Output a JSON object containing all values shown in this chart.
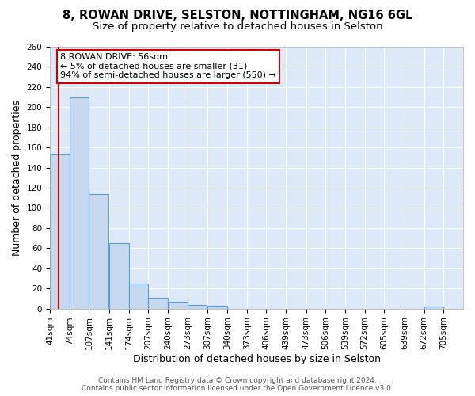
{
  "title_line1": "8, ROWAN DRIVE, SELSTON, NOTTINGHAM, NG16 6GL",
  "title_line2": "Size of property relative to detached houses in Selston",
  "xlabel": "Distribution of detached houses by size in Selston",
  "ylabel": "Number of detached properties",
  "footer_line1": "Contains HM Land Registry data © Crown copyright and database right 2024.",
  "footer_line2": "Contains public sector information licensed under the Open Government Licence v3.0.",
  "annotation_line1": "8 ROWAN DRIVE: 56sqm",
  "annotation_line2": "← 5% of detached houses are smaller (31)",
  "annotation_line3": "94% of semi-detached houses are larger (550) →",
  "bin_labels": [
    "41sqm",
    "74sqm",
    "107sqm",
    "141sqm",
    "174sqm",
    "207sqm",
    "240sqm",
    "273sqm",
    "307sqm",
    "340sqm",
    "373sqm",
    "406sqm",
    "439sqm",
    "473sqm",
    "506sqm",
    "539sqm",
    "572sqm",
    "605sqm",
    "639sqm",
    "672sqm",
    "705sqm"
  ],
  "bin_edges": [
    41,
    74,
    107,
    141,
    174,
    207,
    240,
    273,
    307,
    340,
    373,
    406,
    439,
    473,
    506,
    539,
    572,
    605,
    639,
    672,
    705
  ],
  "bar_heights": [
    153,
    210,
    114,
    65,
    25,
    11,
    7,
    4,
    3,
    0,
    0,
    0,
    0,
    0,
    0,
    0,
    0,
    0,
    0,
    2,
    0
  ],
  "bar_color": "#c5d8f0",
  "bar_edge_color": "#5a9fd4",
  "property_line_x": 56,
  "property_line_color": "#cc0000",
  "ylim": [
    0,
    260
  ],
  "yticks": [
    0,
    20,
    40,
    60,
    80,
    100,
    120,
    140,
    160,
    180,
    200,
    220,
    240,
    260
  ],
  "figure_bg_color": "#ffffff",
  "plot_bg_color": "#dde9f8",
  "annotation_box_color": "#ffffff",
  "annotation_box_edge": "#cc0000",
  "grid_color": "#ffffff",
  "title_fontsize": 10.5,
  "subtitle_fontsize": 9.5,
  "axis_label_fontsize": 9,
  "tick_fontsize": 7.5,
  "annotation_fontsize": 8,
  "footer_fontsize": 6.5
}
